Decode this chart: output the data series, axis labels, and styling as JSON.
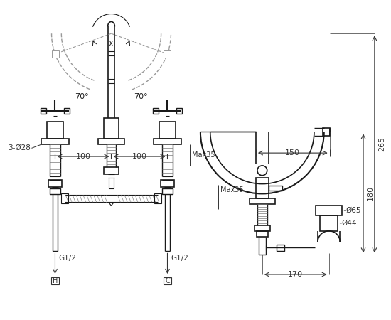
{
  "bg_color": "#ffffff",
  "line_color": "#1a1a1a",
  "dim_color": "#333333",
  "dashed_color": "#999999",
  "fig_width": 5.5,
  "fig_height": 4.5,
  "dpi": 100,
  "annotations": {
    "70deg_left": "70°",
    "70deg_right": "70°",
    "100_left": "100",
    "100_right": "100",
    "3_O28": "3-Ø28",
    "G1_2_left": "G1/2",
    "G1_2_right": "G1/2",
    "H": "H",
    "C": "C",
    "Max35": "Max35",
    "dim150": "150",
    "dim265": "265",
    "dim180": "180",
    "O65": "Ø65",
    "O44": "Ø44",
    "dim170": "170"
  }
}
